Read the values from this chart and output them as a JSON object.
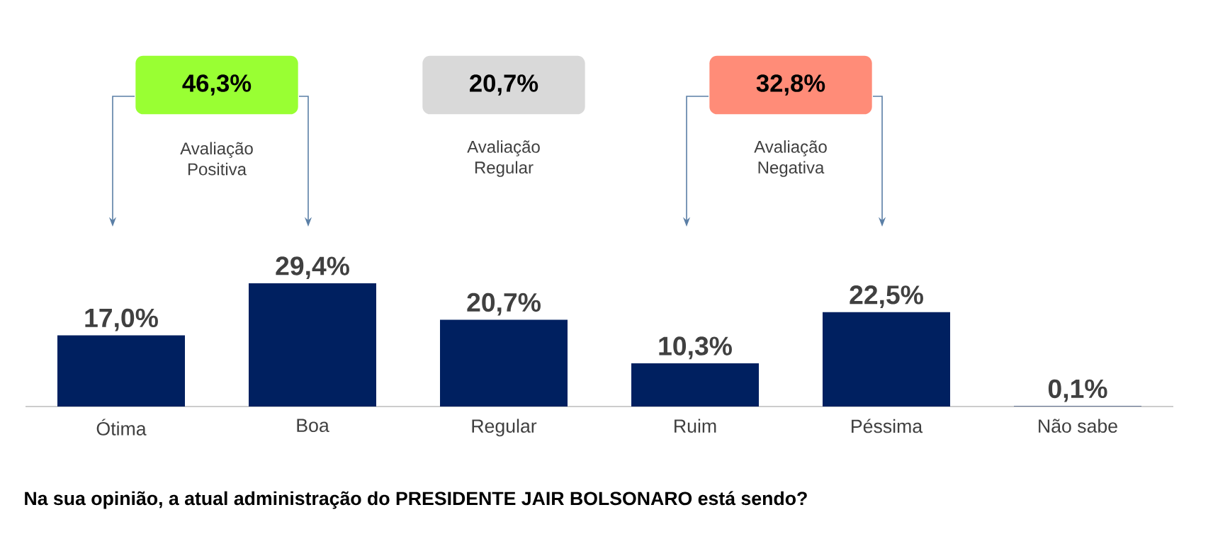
{
  "chart_data": {
    "type": "bar",
    "categories": [
      "Ótima",
      "Boa",
      "Regular",
      "Ruim",
      "Péssima",
      "Não sabe"
    ],
    "values": [
      17.0,
      29.4,
      20.7,
      10.3,
      22.5,
      0.1
    ],
    "value_labels": [
      "17,0%",
      "29,4%",
      "20,7%",
      "10,3%",
      "22,5%",
      "0,1%"
    ],
    "color": "#002060",
    "tick_labels": "x",
    "annotations": [
      "46,3%",
      "Avaliação Positiva",
      "20,7%",
      "Avaliação Regular",
      "32,8%",
      "Avaliação Negativa",
      "Na sua opinião, a atual administração do PRESIDENTE JAIR BOLSONARO está sendo?"
    ]
  }
}
